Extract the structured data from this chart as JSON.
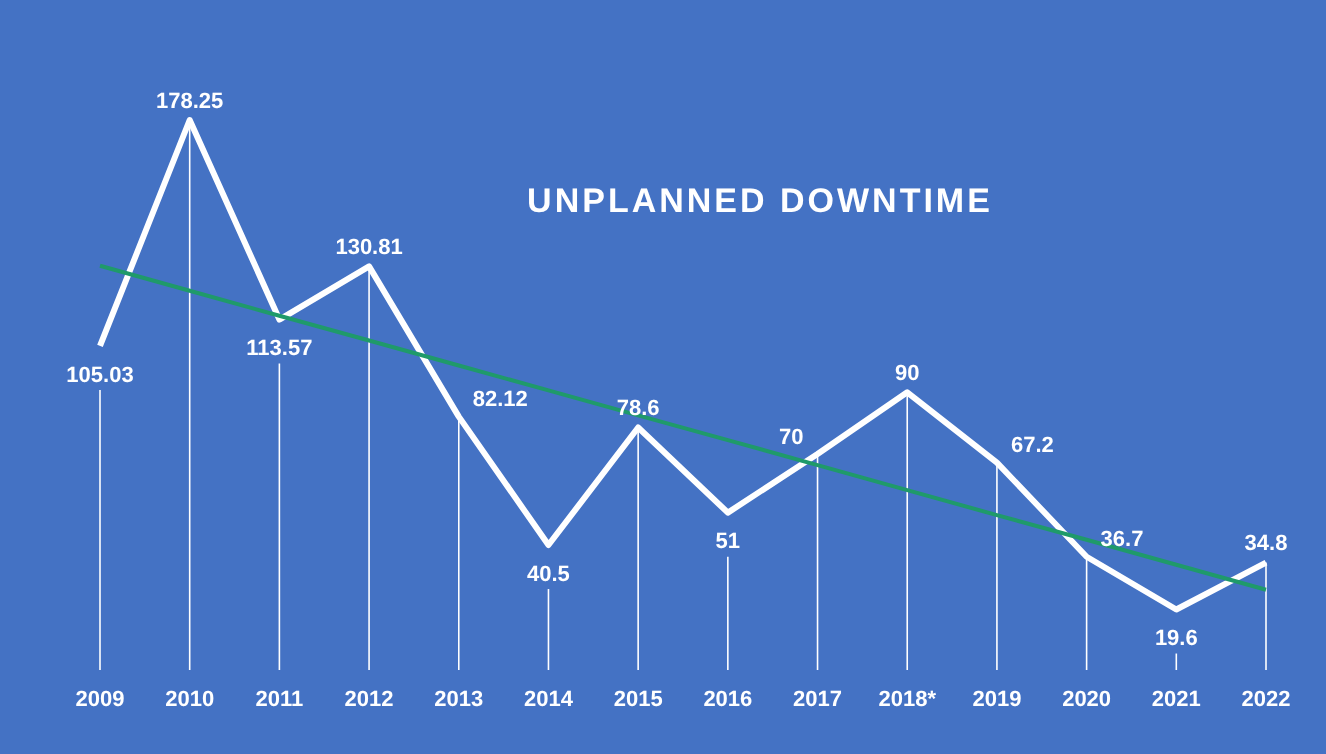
{
  "chart_data": {
    "type": "line",
    "title": "UNPLANNED DOWNTIME",
    "categories": [
      "2009",
      "2010",
      "2011",
      "2012",
      "2013",
      "2014",
      "2015",
      "2016",
      "2017",
      "2018*",
      "2019",
      "2020",
      "2021",
      "2022"
    ],
    "series": [
      {
        "color": "#ffffff",
        "values": [
          105.03,
          178.25,
          113.57,
          130.81,
          82.12,
          40.5,
          78.6,
          51,
          70,
          90,
          67.2,
          36.7,
          19.6,
          34.8
        ],
        "value_labels": [
          "105.03",
          "178.25",
          "113.57",
          "130.81",
          "82.12",
          "40.5",
          "78.6",
          "51",
          "70",
          "90",
          "67.2",
          "36.7",
          "19.6",
          "34.8"
        ]
      },
      {
        "type": "line",
        "color": "#1f9a6a",
        "values": [
          131,
          122.9,
          114.8,
          106.8,
          98.7,
          90.6,
          82.5,
          74.5,
          66.4,
          58.3,
          50.2,
          42.2,
          34.1,
          26
        ]
      }
    ],
    "tick_labels": "x",
    "grid": "x"
  }
}
